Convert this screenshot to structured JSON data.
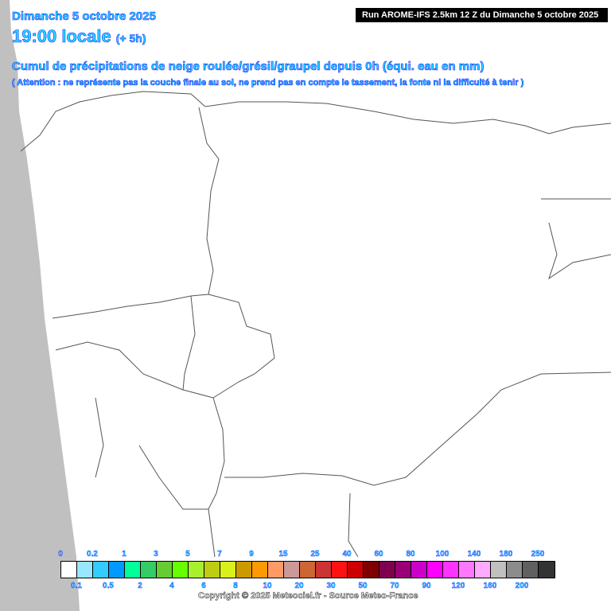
{
  "header": {
    "date": "Dimanche 5 octobre 2025",
    "time": "19:00 locale",
    "offset": "(+ 5h)",
    "title": "Cumul de précipitations de neige roulée/grésil/graupel depuis 0h (équi. eau en mm)",
    "note": "( Attention : ne représente pas la couche finale au sol, ne prend pas en compte le tassement, la fonte ni la difficulté à tenir )",
    "run": "Run AROME-IFS 2.5km 12 Z du Dimanche 5 octobre 2025"
  },
  "colors": {
    "sea": "#c0c0c0",
    "borders": "#555555",
    "title_fill": "#22ddff"
  },
  "legend": {
    "labels": [
      "0",
      "0.1",
      "0.2",
      "0.5",
      "1",
      "2",
      "3",
      "4",
      "5",
      "6",
      "7",
      "8",
      "9",
      "10",
      "15",
      "20",
      "25",
      "30",
      "40",
      "50",
      "60",
      "70",
      "80",
      "90",
      "100",
      "120",
      "140",
      "160",
      "180",
      "200",
      "250"
    ],
    "colors": [
      "#ffffff",
      "#99e6ff",
      "#33ccff",
      "#0099ff",
      "#00ff99",
      "#33cc66",
      "#66cc33",
      "#66ff00",
      "#a6f02e",
      "#bfcc14",
      "#d9f01a",
      "#cc9900",
      "#ff9900",
      "#ff9966",
      "#cc9999",
      "#cc6633",
      "#cc3333",
      "#ff1111",
      "#cc0000",
      "#800000",
      "#800050",
      "#990077",
      "#cc00cc",
      "#ff00ff",
      "#ff33ff",
      "#ff77ff",
      "#ffaaff",
      "#c0c0c0",
      "#8c8c8c",
      "#606060",
      "#333333"
    ]
  },
  "copyright": "Copyright © 2025 Meteociel.fr - Source Meteo-France"
}
